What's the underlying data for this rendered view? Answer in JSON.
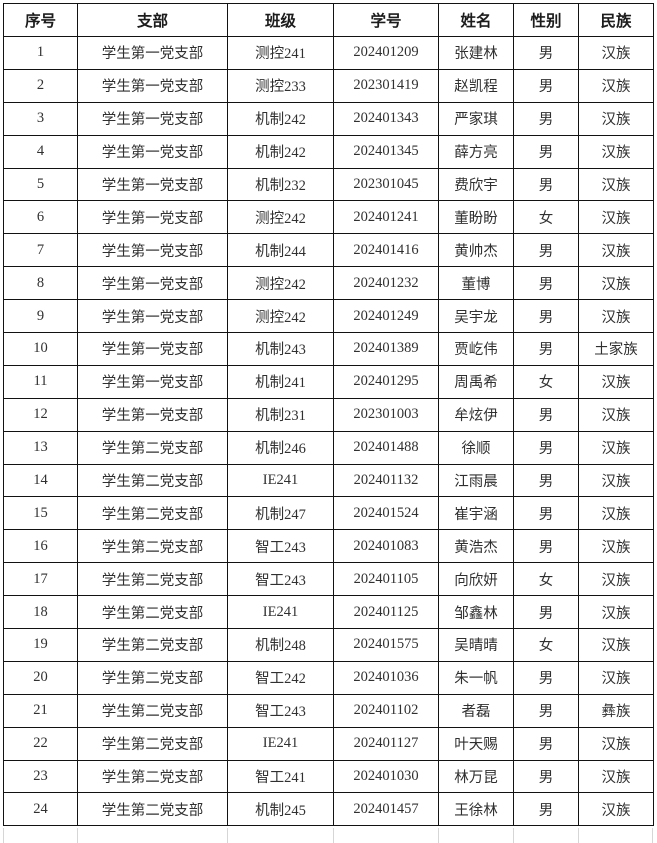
{
  "table": {
    "title_semantic": "student-party-branch-roster",
    "columns": [
      "序号",
      "支部",
      "班级",
      "学号",
      "姓名",
      "性别",
      "民族"
    ],
    "rows": [
      [
        "1",
        "学生第一党支部",
        "测控241",
        "202401209",
        "张建林",
        "男",
        "汉族"
      ],
      [
        "2",
        "学生第一党支部",
        "测控233",
        "202301419",
        "赵凯程",
        "男",
        "汉族"
      ],
      [
        "3",
        "学生第一党支部",
        "机制242",
        "202401343",
        "严家琪",
        "男",
        "汉族"
      ],
      [
        "4",
        "学生第一党支部",
        "机制242",
        "202401345",
        "薛方亮",
        "男",
        "汉族"
      ],
      [
        "5",
        "学生第一党支部",
        "机制232",
        "202301045",
        "费欣宇",
        "男",
        "汉族"
      ],
      [
        "6",
        "学生第一党支部",
        "测控242",
        "202401241",
        "董盼盼",
        "女",
        "汉族"
      ],
      [
        "7",
        "学生第一党支部",
        "机制244",
        "202401416",
        "黄帅杰",
        "男",
        "汉族"
      ],
      [
        "8",
        "学生第一党支部",
        "测控242",
        "202401232",
        "董博",
        "男",
        "汉族"
      ],
      [
        "9",
        "学生第一党支部",
        "测控242",
        "202401249",
        "吴宇龙",
        "男",
        "汉族"
      ],
      [
        "10",
        "学生第一党支部",
        "机制243",
        "202401389",
        "贾屹伟",
        "男",
        "土家族"
      ],
      [
        "11",
        "学生第一党支部",
        "机制241",
        "202401295",
        "周禹希",
        "女",
        "汉族"
      ],
      [
        "12",
        "学生第一党支部",
        "机制231",
        "202301003",
        "牟炫伊",
        "男",
        "汉族"
      ],
      [
        "13",
        "学生第二党支部",
        "机制246",
        "202401488",
        "徐顺",
        "男",
        "汉族"
      ],
      [
        "14",
        "学生第二党支部",
        "IE241",
        "202401132",
        "江雨晨",
        "男",
        "汉族"
      ],
      [
        "15",
        "学生第二党支部",
        "机制247",
        "202401524",
        "崔宇涵",
        "男",
        "汉族"
      ],
      [
        "16",
        "学生第二党支部",
        "智工243",
        "202401083",
        "黄浩杰",
        "男",
        "汉族"
      ],
      [
        "17",
        "学生第二党支部",
        "智工243",
        "202401105",
        "向欣妍",
        "女",
        "汉族"
      ],
      [
        "18",
        "学生第二党支部",
        "IE241",
        "202401125",
        "邹鑫林",
        "男",
        "汉族"
      ],
      [
        "19",
        "学生第二党支部",
        "机制248",
        "202401575",
        "吴晴晴",
        "女",
        "汉族"
      ],
      [
        "20",
        "学生第二党支部",
        "智工242",
        "202401036",
        "朱一帆",
        "男",
        "汉族"
      ],
      [
        "21",
        "学生第二党支部",
        "智工243",
        "202401102",
        "者磊",
        "男",
        "彝族"
      ],
      [
        "22",
        "学生第二党支部",
        "IE241",
        "202401127",
        "叶天赐",
        "男",
        "汉族"
      ],
      [
        "23",
        "学生第二党支部",
        "智工241",
        "202401030",
        "林万昆",
        "男",
        "汉族"
      ],
      [
        "24",
        "学生第二党支部",
        "机制245",
        "202401457",
        "王徐林",
        "男",
        "汉族"
      ]
    ],
    "colors": {
      "grid_line": "#121212",
      "faint_grid_line": "#d6d6d6",
      "text": "#303030",
      "background": "#ffffff"
    }
  }
}
